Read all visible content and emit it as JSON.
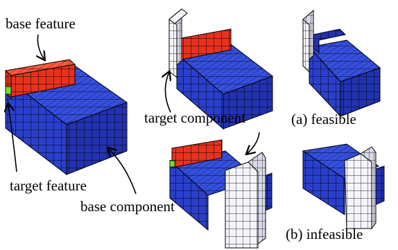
{
  "labels": {
    "base_feature": "base feature",
    "target_feature": "target feature",
    "base_component": "base component",
    "target_component": "target component",
    "feasible": "(a) feasible",
    "infeasible": "(b) infeasible"
  },
  "colors": {
    "base_blue": "#2a3fcc",
    "feature_red": "#e8321e",
    "target_green": "#6ee02e",
    "component_white": "#f2f2f8",
    "grid_line": "#000000",
    "background": "#ffffff"
  }
}
